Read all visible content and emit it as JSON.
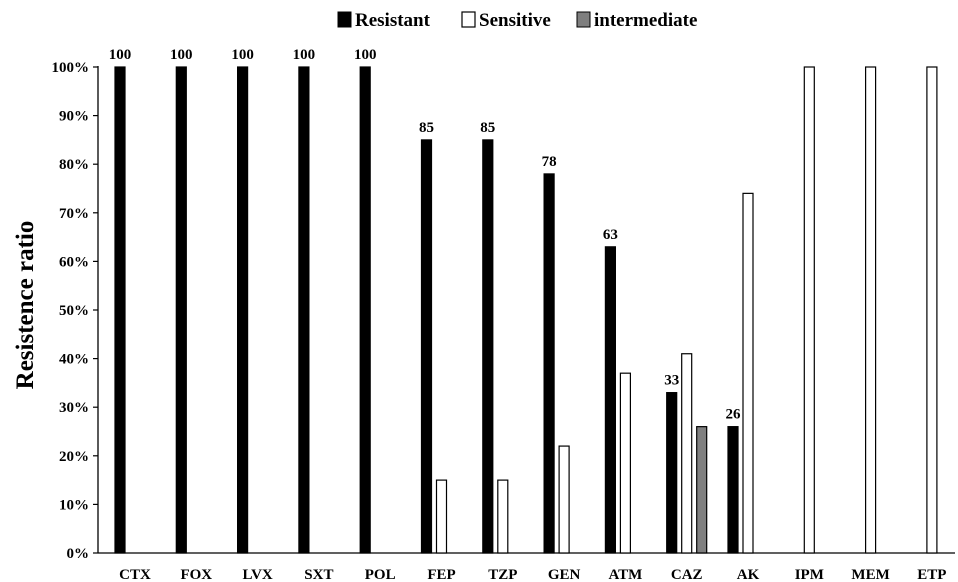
{
  "chart_data": {
    "type": "bar",
    "title": "",
    "xlabel": "",
    "ylabel": "Resistence ratio",
    "ylim": [
      0,
      100
    ],
    "y_ticks": [
      "0%",
      "10%",
      "20%",
      "30%",
      "40%",
      "50%",
      "60%",
      "70%",
      "80%",
      "90%",
      "100%"
    ],
    "grid": false,
    "legend_position": "top-center",
    "categories": [
      "CTX",
      "FOX",
      "LVX",
      "SXT",
      "POL",
      "FEP",
      "TZP",
      "GEN",
      "ATM",
      "CAZ",
      "AK",
      "IPM",
      "MEM",
      "ETP"
    ],
    "series": [
      {
        "name": "Resistant",
        "color": "#000000",
        "values": [
          100,
          100,
          100,
          100,
          100,
          85,
          85,
          78,
          63,
          33,
          26,
          0,
          0,
          0
        ],
        "labels": [
          "100",
          "100",
          "100",
          "100",
          "100",
          "85",
          "85",
          "78",
          "63",
          "33",
          "26",
          "",
          "",
          ""
        ]
      },
      {
        "name": "Sensitive",
        "color": "#ffffff",
        "values": [
          0,
          0,
          0,
          0,
          0,
          15,
          15,
          22,
          37,
          41,
          74,
          100,
          100,
          100
        ]
      },
      {
        "name": "intermediate",
        "color": "#7f7f7f",
        "values": [
          0,
          0,
          0,
          0,
          0,
          0,
          0,
          0,
          0,
          26,
          0,
          0,
          0,
          0
        ]
      }
    ]
  }
}
